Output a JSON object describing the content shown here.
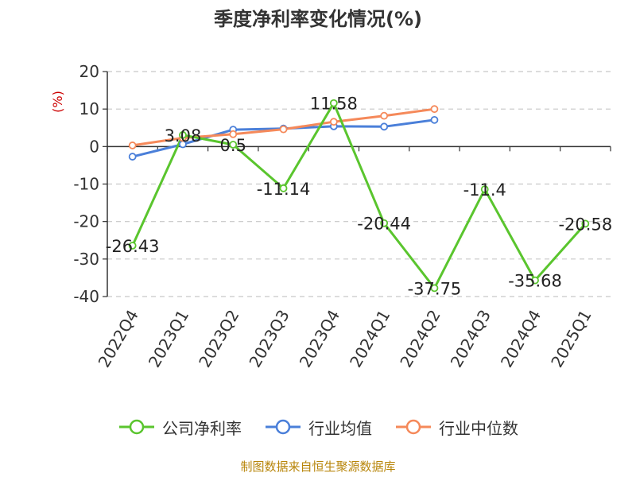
{
  "chart_data": {
    "type": "line",
    "title": "季度净利率变化情况(%)",
    "ylabel": "(%)",
    "xlabel": "",
    "categories": [
      "2022Q4",
      "2023Q1",
      "2023Q2",
      "2023Q3",
      "2023Q4",
      "2024Q1",
      "2024Q2",
      "2024Q3",
      "2024Q4",
      "2025Q1"
    ],
    "ylim": [
      -40,
      20
    ],
    "yticks": [
      20,
      10,
      0,
      -10,
      -20,
      -30,
      -40
    ],
    "grid": true,
    "legend_position": "bottom",
    "series": [
      {
        "name": "公司净利率",
        "color": "#5ac52e",
        "values": [
          -26.43,
          3.08,
          0.5,
          -11.14,
          11.58,
          -20.44,
          -37.75,
          -11.4,
          -35.68,
          -20.58
        ],
        "labels": [
          "-26.43",
          "3.08",
          "0.5",
          "-11.14",
          "11.58",
          "-20.44",
          "-37.75",
          "-11.4",
          "-35.68",
          "-20.58"
        ]
      },
      {
        "name": "行业均值",
        "color": "#4a7fd9",
        "values": [
          -2.7,
          0.6,
          4.5,
          4.8,
          5.4,
          5.3,
          7.1,
          null,
          null,
          null
        ]
      },
      {
        "name": "行业中位数",
        "color": "#f5895a",
        "values": [
          0.3,
          2.3,
          3.3,
          4.6,
          6.6,
          8.2,
          10.0,
          null,
          null,
          null
        ]
      }
    ]
  },
  "source": "制图数据来自恒生聚源数据库"
}
